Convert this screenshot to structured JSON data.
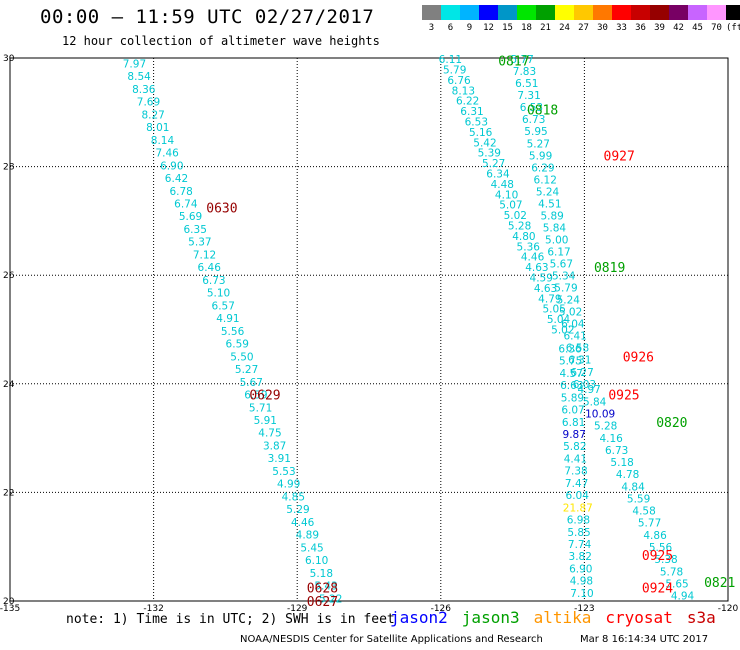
{
  "header": {
    "title": "00:00 – 11:59 UTC 02/27/2017",
    "subtitle": "12 hour collection of altimeter wave heights"
  },
  "legend": {
    "colors": [
      "#808080",
      "#00e6e6",
      "#00b4ff",
      "#0000ff",
      "#0096c8",
      "#00e600",
      "#00a000",
      "#ffff00",
      "#ffc800",
      "#ff7800",
      "#ff0000",
      "#c80000",
      "#960000",
      "#780064",
      "#c864ff",
      "#ff96ff",
      "#000000"
    ],
    "ticks": [
      "3",
      "6",
      "9",
      "12",
      "15",
      "18",
      "21",
      "24",
      "27",
      "30",
      "33",
      "36",
      "39",
      "42",
      "45",
      "70",
      "(ft)"
    ]
  },
  "footer": {
    "note": "note: 1) Time is in UTC; 2) SWH is in feet",
    "missions": [
      {
        "name": "jason2",
        "color": "#0000ff"
      },
      {
        "name": "jason3",
        "color": "#00a000"
      },
      {
        "name": "altika",
        "color": "#ff9600"
      },
      {
        "name": "cryosat",
        "color": "#ff0000"
      },
      {
        "name": "s3a",
        "color": "#c80000"
      }
    ],
    "credit": "NOAA/NESDIS Center for Satellite Applications and Research",
    "timestamp": "Mar  8 16:14:34 UTC 2017"
  },
  "chart_data": {
    "type": "scatter",
    "xlim": [
      -135,
      -120
    ],
    "ylim": [
      20,
      30
    ],
    "xticks": [
      "-135",
      "-132",
      "-129",
      "-126",
      "-123",
      "-120"
    ],
    "yticks": [
      "20",
      "22",
      "24",
      "26",
      "28",
      "30"
    ],
    "grid": true,
    "pass_labels": [
      {
        "label": "0817",
        "x": -124.8,
        "y": 29.95,
        "color": "#00a000"
      },
      {
        "label": "0818",
        "x": -124.2,
        "y": 29.05,
        "color": "#00a000"
      },
      {
        "label": "0927",
        "x": -122.6,
        "y": 28.2,
        "color": "#ff0000"
      },
      {
        "label": "0630",
        "x": -130.9,
        "y": 27.25,
        "color": "#960000"
      },
      {
        "label": "0819",
        "x": -122.8,
        "y": 26.15,
        "color": "#00a000"
      },
      {
        "label": "0926",
        "x": -122.2,
        "y": 24.5,
        "color": "#ff0000"
      },
      {
        "label": "0629",
        "x": -130.0,
        "y": 23.8,
        "color": "#960000"
      },
      {
        "label": "0925",
        "x": -122.5,
        "y": 23.8,
        "color": "#ff0000"
      },
      {
        "label": "0820",
        "x": -121.5,
        "y": 23.3,
        "color": "#00a000"
      },
      {
        "label": "0925",
        "x": -121.8,
        "y": 20.85,
        "color": "#ff0000"
      },
      {
        "label": "0628",
        "x": -128.8,
        "y": 20.25,
        "color": "#960000"
      },
      {
        "label": "0627",
        "x": -128.8,
        "y": 20.0,
        "color": "#960000"
      },
      {
        "label": "0924",
        "x": -121.8,
        "y": 20.25,
        "color": "#ff0000"
      },
      {
        "label": "0821",
        "x": -120.5,
        "y": 20.35,
        "color": "#00a000"
      }
    ],
    "series": [
      {
        "name": "0630",
        "color": "#00c8d2",
        "x0": -132.4,
        "x1": -128.3,
        "y0": 29.9,
        "y1": 20.05,
        "values": [
          "7.97",
          "8.54",
          "8.36",
          "7.69",
          "8.27",
          "8.01",
          "8.14",
          "7.46",
          "6.90",
          "6.42",
          "6.78",
          "6.74",
          "5.69",
          "6.35",
          "5.37",
          "7.12",
          "6.46",
          "6.73",
          "5.10",
          "6.57",
          "4.91",
          "5.56",
          "6.59",
          "5.50",
          "5.27",
          "5.67",
          "6.59",
          "5.71",
          "5.91",
          "4.75",
          "3.87",
          "3.91",
          "5.53",
          "4.99",
          "4.85",
          "5.29",
          "4.46",
          "4.89",
          "5.45",
          "6.10",
          "5.18",
          "5.43",
          "5.22"
        ]
      },
      {
        "name": "0817-0819",
        "color": "#00c8d2",
        "x0": -125.8,
        "x1": -123.45,
        "y0": 29.98,
        "y1": 25.0,
        "values": [
          "6.11",
          "5.79",
          "6.76",
          "8.13",
          "6.22",
          "6.31",
          "6.53",
          "5.16",
          "5.42",
          "5.39",
          "5.27",
          "6.34",
          "4.48",
          "4.10",
          "5.07",
          "5.02",
          "5.28",
          "4.80",
          "5.36",
          "4.46",
          "4.63",
          "4.59",
          "4.63",
          "4.79",
          "5.05",
          "5.04",
          "5.02"
        ]
      },
      {
        "name": "0927",
        "color": "#00c8d2",
        "x0": -124.3,
        "x1": -123.0,
        "y0": 29.98,
        "y1": 24.0,
        "values": [
          "5.77",
          "7.83",
          "6.51",
          "7.31",
          "6.53",
          "6.73",
          "5.95",
          "5.27",
          "5.99",
          "6.29",
          "6.12",
          "5.24",
          "4.51",
          "5.89",
          "5.84",
          "5.00",
          "6.17",
          "5.67",
          "5.34",
          "5.79",
          "5.24",
          "5.02",
          "6.04",
          "6.41",
          "6.58",
          "6.31",
          "6.27",
          "6.03"
        ]
      },
      {
        "name": "0925",
        "color": "#00c8d2",
        "x0": -123.3,
        "x1": -123.05,
        "y0": 24.65,
        "y1": 20.15,
        "values": [
          "6.36",
          "5.75",
          "4.57",
          "6.63",
          "5.89",
          "6.07",
          "6.81",
          "9.87",
          "5.82",
          "4.41",
          "7.38",
          "7.47",
          "6.04",
          "21.87",
          "6.98",
          "5.85",
          "7.74",
          "3.82",
          "6.90",
          "4.98",
          "7.10"
        ]
      },
      {
        "name": "0820",
        "color": "#00c8d2",
        "x0": -122.9,
        "x1": -120.95,
        "y0": 23.9,
        "y1": 20.1,
        "values": [
          "4.97",
          "5.84",
          "10.09",
          "5.28",
          "4.16",
          "6.73",
          "5.18",
          "4.78",
          "4.84",
          "5.59",
          "4.58",
          "5.77",
          "4.86",
          "5.56",
          "5.38",
          "5.78",
          "5.65",
          "4.94"
        ]
      }
    ]
  }
}
